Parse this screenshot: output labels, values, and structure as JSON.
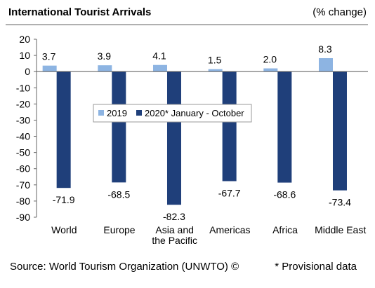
{
  "header": {
    "title": "International Tourist Arrivals",
    "unit": "(% change)"
  },
  "footer": {
    "source": "Source: World Tourism Organization (UNWTO) ©",
    "note": "* Provisional data"
  },
  "colors": {
    "series_2019": "#8DB4E2",
    "series_2020": "#1F3F7A"
  },
  "chart_data": {
    "type": "bar",
    "title": "International Tourist Arrivals",
    "ylabel": "(% change)",
    "ylim": [
      -90,
      20
    ],
    "yticks": [
      20,
      10,
      0,
      -10,
      -20,
      -30,
      -40,
      -50,
      -60,
      -70,
      -80,
      -90
    ],
    "grid": false,
    "legend_position": "center",
    "categories": [
      [
        "World"
      ],
      [
        "Europe"
      ],
      [
        "Asia and",
        "the Pacific"
      ],
      [
        "Americas"
      ],
      [
        "Africa"
      ],
      [
        "Middle East"
      ]
    ],
    "series": [
      {
        "name": "2019",
        "values": [
          3.7,
          3.9,
          4.1,
          1.5,
          2.0,
          8.3
        ],
        "labels": [
          "3.7",
          "3.9",
          "4.1",
          "1.5",
          "2.0",
          "8.3"
        ]
      },
      {
        "name": "2020* January - October",
        "values": [
          -71.9,
          -68.5,
          -82.3,
          -67.7,
          -68.6,
          -73.4
        ],
        "labels": [
          "-71.9",
          "-68.5",
          "-82.3",
          "-67.7",
          "-68.6",
          "-73.4"
        ]
      }
    ]
  }
}
